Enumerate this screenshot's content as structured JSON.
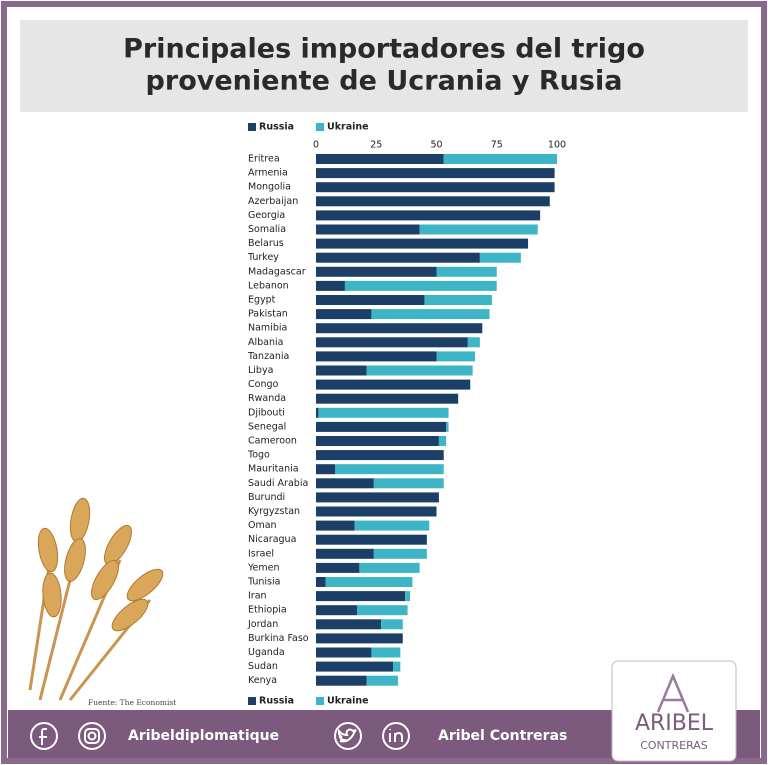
{
  "header": {
    "title": [
      "Principales importadores del trigo",
      "proveniente de Ucrania y Rusia"
    ]
  },
  "chart_data": {
    "type": "bar",
    "stacked": true,
    "orientation": "horizontal",
    "categories": [
      "Eritrea",
      "Armenia",
      "Mongolia",
      "Azerbaijan",
      "Georgia",
      "Somalia",
      "Belarus",
      "Turkey",
      "Madagascar",
      "Lebanon",
      "Egypt",
      "Pakistan",
      "Namibia",
      "Albania",
      "Tanzania",
      "Libya",
      "Congo",
      "Rwanda",
      "Djibouti",
      "Senegal",
      "Cameroon",
      "Togo",
      "Mauritania",
      "Saudi Arabia",
      "Burundi",
      "Kyrgyzstan",
      "Oman",
      "Nicaragua",
      "Israel",
      "Yemen",
      "Tunisia",
      "Iran",
      "Ethiopia",
      "Jordan",
      "Burkina Faso",
      "Uganda",
      "Sudan",
      "Kenya"
    ],
    "series": [
      {
        "name": "Russia",
        "color": "#1b3f66",
        "values": [
          53,
          99,
          99,
          97,
          93,
          43,
          88,
          68,
          50,
          12,
          45,
          23,
          69,
          63,
          50,
          21,
          64,
          59,
          1,
          54,
          51,
          53,
          8,
          24,
          51,
          50,
          16,
          46,
          24,
          18,
          4,
          37,
          17,
          27,
          36,
          23,
          32,
          21
        ]
      },
      {
        "name": "Ukraine",
        "color": "#3db5c6",
        "values": [
          47,
          0,
          0,
          0,
          0,
          49,
          0,
          17,
          25,
          63,
          28,
          49,
          0,
          5,
          16,
          44,
          0,
          0,
          54,
          1,
          3,
          0,
          45,
          29,
          0,
          0,
          31,
          0,
          22,
          25,
          36,
          2,
          21,
          9,
          0,
          12,
          3,
          13
        ]
      }
    ],
    "xlim": [
      0,
      100
    ],
    "xticks": [
      0,
      25,
      50,
      75,
      100
    ],
    "legend": "top",
    "source": "Fuente: The Economist"
  },
  "footer": {
    "social": "Aribeldiplomatique",
    "name": "Aribel Contreras",
    "logo": [
      "ARIBEL",
      "CONTRERAS"
    ]
  }
}
